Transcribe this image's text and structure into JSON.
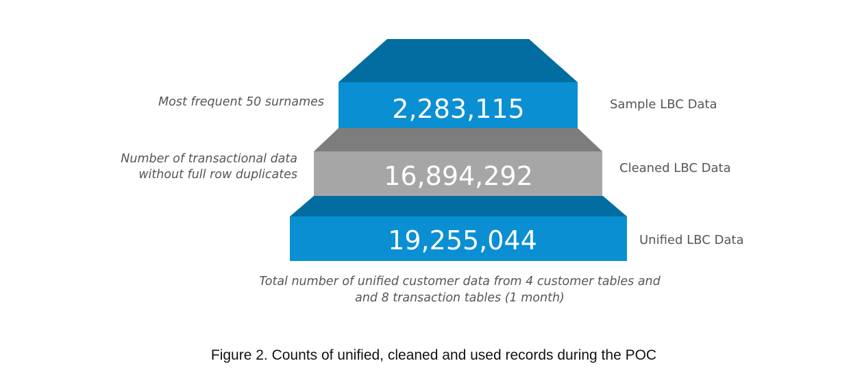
{
  "colors": {
    "blue_front": "#0a8fd3",
    "blue_top": "#026da1",
    "gray_front": "#a6a6a6",
    "gray_top": "#7d7d7d"
  },
  "tiers": [
    {
      "count": "2,283,115",
      "label": "Sample LBC Data",
      "note_lines": [
        "Most frequent 50 surnames"
      ],
      "color": "blue"
    },
    {
      "count": "16,894,292",
      "label": "Cleaned LBC Data",
      "note_lines": [
        "Number of transactional data",
        "without full row duplicates"
      ],
      "color": "gray"
    },
    {
      "count": "19,255,044",
      "label": "Unified LBC Data",
      "note_lines": [],
      "color": "blue"
    }
  ],
  "bottom_note": {
    "line1": "Total number of unified customer data from 4 customer tables and",
    "line2": "and 8 transaction tables (1 month)"
  },
  "caption": "Figure 2. Counts of unified, cleaned and used records during the POC"
}
